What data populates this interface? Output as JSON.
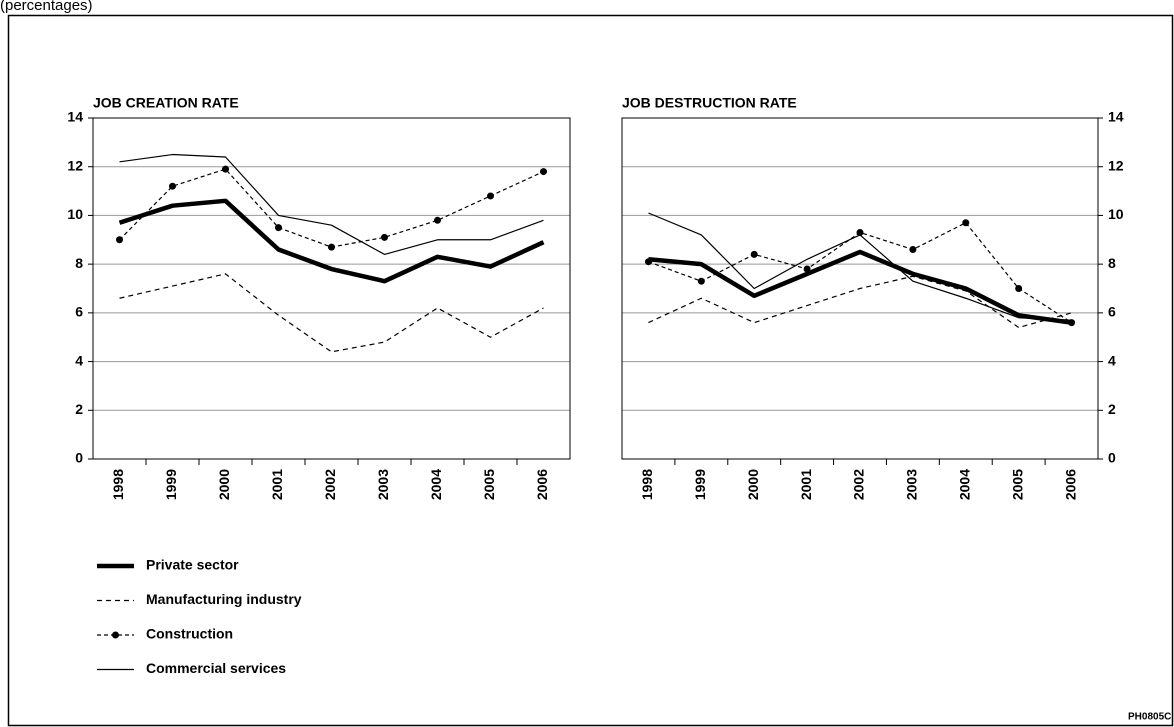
{
  "subtitle": "(percentages)",
  "code": "PH0805C",
  "chart_data": [
    {
      "type": "line",
      "title": "JOB CREATION RATE",
      "y_axis_side": "left",
      "grid": true,
      "categories": [
        "1998",
        "1999",
        "2000",
        "2001",
        "2002",
        "2003",
        "2004",
        "2005",
        "2006"
      ],
      "ylim": [
        0,
        14
      ],
      "yticks": [
        0,
        2,
        4,
        6,
        8,
        10,
        12,
        14
      ],
      "series": [
        {
          "name": "Private sector",
          "color": "#000000",
          "width": 4.5,
          "dash": "none",
          "marker": "none",
          "values": [
            9.7,
            10.4,
            10.6,
            8.6,
            7.8,
            7.3,
            8.3,
            7.9,
            8.9
          ]
        },
        {
          "name": "Manufacturing industry",
          "color": "#000000",
          "width": 1.2,
          "dash": "5,4",
          "marker": "none",
          "values": [
            6.6,
            7.1,
            7.6,
            5.9,
            4.4,
            4.8,
            6.2,
            5.0,
            6.2
          ]
        },
        {
          "name": "Construction",
          "color": "#000000",
          "width": 1.2,
          "dash": "4,3",
          "marker": "circle",
          "values": [
            9.0,
            11.2,
            11.9,
            9.5,
            8.7,
            9.1,
            9.8,
            10.8,
            11.8
          ]
        },
        {
          "name": "Commercial services",
          "color": "#000000",
          "width": 1.2,
          "dash": "none",
          "marker": "none",
          "values": [
            12.2,
            12.5,
            12.4,
            10.0,
            9.6,
            8.4,
            9.0,
            9.0,
            9.8
          ]
        }
      ]
    },
    {
      "type": "line",
      "title": "JOB DESTRUCTION RATE",
      "y_axis_side": "right",
      "grid": true,
      "categories": [
        "1998",
        "1999",
        "2000",
        "2001",
        "2002",
        "2003",
        "2004",
        "2005",
        "2006"
      ],
      "ylim": [
        0,
        14
      ],
      "yticks": [
        0,
        2,
        4,
        6,
        8,
        10,
        12,
        14
      ],
      "series": [
        {
          "color": "#000000",
          "width": 4.5,
          "dash": "none",
          "marker": "none",
          "values": [
            8.2,
            8.0,
            6.7,
            7.6,
            8.5,
            7.6,
            7.0,
            5.9,
            5.6
          ]
        },
        {
          "color": "#000000",
          "width": 1.2,
          "dash": "5,4",
          "marker": "none",
          "values": [
            5.6,
            6.6,
            5.6,
            6.3,
            7.0,
            7.5,
            6.9,
            5.4,
            6.0
          ]
        },
        {
          "color": "#000000",
          "width": 1.2,
          "dash": "4,3",
          "marker": "circle",
          "values": [
            8.1,
            7.3,
            8.4,
            7.8,
            9.3,
            8.6,
            9.7,
            7.0,
            5.6
          ]
        },
        {
          "color": "#000000",
          "width": 1.2,
          "dash": "none",
          "marker": "none",
          "values": [
            10.1,
            9.2,
            7.0,
            8.2,
            9.2,
            7.3,
            6.6,
            5.8,
            5.7
          ]
        }
      ]
    }
  ]
}
